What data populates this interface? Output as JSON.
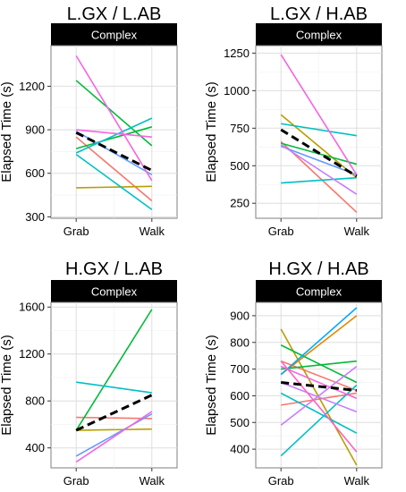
{
  "chart_data": [
    {
      "type": "line",
      "title": "L.GX / L.AB",
      "facet_label": "Complex",
      "ylabel": "Elapsed Time (s)",
      "categories": [
        "Grab",
        "Walk"
      ],
      "ylim": [
        290,
        1480
      ],
      "yticks": [
        300,
        600,
        900,
        1200
      ],
      "series": [
        {
          "color": "#F8766D",
          "values": [
            850,
            410
          ]
        },
        {
          "color": "#B79F00",
          "values": [
            500,
            510
          ]
        },
        {
          "color": "#00BA38",
          "values": [
            1240,
            790
          ]
        },
        {
          "color": "#00BA38",
          "values": [
            770,
            920
          ]
        },
        {
          "color": "#00BFC4",
          "values": [
            740,
            980
          ]
        },
        {
          "color": "#00BFC4",
          "values": [
            730,
            350
          ]
        },
        {
          "color": "#619CFF",
          "values": [
            890,
            590
          ]
        },
        {
          "color": "#F564E3",
          "values": [
            1410,
            550
          ]
        },
        {
          "color": "#F564E3",
          "values": [
            900,
            850
          ]
        },
        {
          "color": "#000000",
          "dashed": true,
          "values": [
            880,
            620
          ]
        }
      ]
    },
    {
      "type": "line",
      "title": "L.GX / H.AB",
      "facet_label": "Complex",
      "ylabel": "Elapsed Time (s)",
      "categories": [
        "Grab",
        "Walk"
      ],
      "ylim": [
        150,
        1300
      ],
      "yticks": [
        250,
        500,
        750,
        1000,
        1250
      ],
      "series": [
        {
          "color": "#F8766D",
          "values": [
            660,
            190
          ]
        },
        {
          "color": "#B79F00",
          "values": [
            840,
            420
          ]
        },
        {
          "color": "#00BA38",
          "values": [
            650,
            510
          ]
        },
        {
          "color": "#00BFC4",
          "values": [
            780,
            700
          ]
        },
        {
          "color": "#00BFC4",
          "values": [
            385,
            420
          ]
        },
        {
          "color": "#619CFF",
          "values": [
            630,
            440
          ]
        },
        {
          "color": "#C77CFF",
          "values": [
            640,
            310
          ]
        },
        {
          "color": "#F564E3",
          "values": [
            1240,
            440
          ]
        },
        {
          "color": "#000000",
          "dashed": true,
          "values": [
            740,
            430
          ]
        }
      ]
    },
    {
      "type": "line",
      "title": "H.GX / L.AB",
      "facet_label": "Complex",
      "ylabel": "Elapsed Time (s)",
      "categories": [
        "Grab",
        "Walk"
      ],
      "ylim": [
        230,
        1640
      ],
      "yticks": [
        400,
        800,
        1200,
        1600
      ],
      "series": [
        {
          "color": "#F8766D",
          "values": [
            660,
            650
          ]
        },
        {
          "color": "#B79F00",
          "values": [
            550,
            560
          ]
        },
        {
          "color": "#00BA38",
          "values": [
            550,
            1580
          ]
        },
        {
          "color": "#00BFC4",
          "values": [
            960,
            870
          ]
        },
        {
          "color": "#619CFF",
          "values": [
            330,
            690
          ]
        },
        {
          "color": "#F564E3",
          "values": [
            280,
            710
          ]
        },
        {
          "color": "#000000",
          "dashed": true,
          "values": [
            550,
            850
          ]
        }
      ]
    },
    {
      "type": "line",
      "title": "H.GX / H.AB",
      "facet_label": "Complex",
      "ylabel": "Elapsed Time (s)",
      "categories": [
        "Grab",
        "Walk"
      ],
      "ylim": [
        330,
        950
      ],
      "yticks": [
        400,
        500,
        600,
        700,
        800,
        900
      ],
      "series": [
        {
          "color": "#F8766D",
          "values": [
            730,
            620
          ]
        },
        {
          "color": "#F8766D",
          "values": [
            565,
            610
          ]
        },
        {
          "color": "#E58700",
          "values": [
            680,
            900
          ]
        },
        {
          "color": "#B79F00",
          "values": [
            850,
            340
          ]
        },
        {
          "color": "#00BA38",
          "values": [
            790,
            650
          ]
        },
        {
          "color": "#00BA38",
          "values": [
            700,
            730
          ]
        },
        {
          "color": "#00BFC4",
          "values": [
            610,
            460
          ]
        },
        {
          "color": "#00BFC4",
          "values": [
            375,
            640
          ]
        },
        {
          "color": "#00A9FF",
          "values": [
            680,
            930
          ]
        },
        {
          "color": "#C77CFF",
          "values": [
            490,
            710
          ]
        },
        {
          "color": "#C77CFF",
          "values": [
            650,
            540
          ]
        },
        {
          "color": "#F564E3",
          "values": [
            710,
            590
          ]
        },
        {
          "color": "#FF61C3",
          "values": [
            730,
            390
          ]
        },
        {
          "color": "#000000",
          "dashed": true,
          "values": [
            650,
            620
          ]
        }
      ]
    }
  ]
}
